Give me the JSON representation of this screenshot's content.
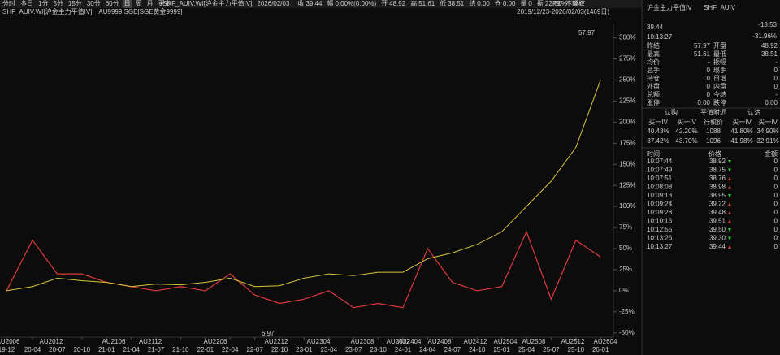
{
  "toolbar": {
    "periods": [
      "分时",
      "多日",
      "1分",
      "5分",
      "15分",
      "30分",
      "60分",
      "日",
      "周",
      "月",
      "更多"
    ],
    "active": 7,
    "quote": [
      [
        "SHF_AUIV.WI[沪金主力平值IV]",
        "#ddd"
      ],
      [
        "2026/02/03",
        "#ddd"
      ],
      [
        "收",
        "#aaa"
      ],
      [
        "39.44",
        "#e84040"
      ],
      [
        "幅",
        "#aaa"
      ],
      [
        "0.00%(0.00%)",
        "#ddd"
      ],
      [
        "开",
        "#aaa"
      ],
      [
        "48.92",
        "#e84040"
      ],
      [
        "高",
        "#aaa"
      ],
      [
        "51.61",
        "#e84040"
      ],
      [
        "低",
        "#aaa"
      ],
      [
        "38.51",
        "#e84040"
      ],
      [
        "结",
        "#aaa"
      ],
      [
        "0.00",
        "#ddd"
      ],
      [
        "仓",
        "#aaa"
      ],
      [
        "0.00",
        "#ddd"
      ],
      [
        "量",
        "#aaa"
      ],
      [
        "0",
        "#ddd"
      ],
      [
        "振",
        "#aaa"
      ],
      [
        "22.60%",
        "#ddd"
      ],
      [
        "额",
        "#aaa"
      ],
      [
        "0",
        "#ddd"
      ]
    ],
    "right": [
      "F9",
      "不复权"
    ],
    "range": "2019/12/23-2026/02/03(1469日)"
  },
  "chart_data": {
    "type": "line",
    "categories": [
      "19-12",
      "20-04",
      "20-07",
      "20-10",
      "21-01",
      "21-04",
      "21-07",
      "21-10",
      "22-01",
      "22-04",
      "22-07",
      "22-10",
      "23-01",
      "23-04",
      "23-07",
      "23-10",
      "24-01",
      "24-04",
      "24-07",
      "24-10",
      "25-01",
      "25-04",
      "25-07",
      "25-10",
      "26-01"
    ],
    "series": [
      {
        "name": "SHF_AUIV.WI[沪金主力平值IV]",
        "color": "#e03a3a",
        "values": [
          0,
          60,
          20,
          20,
          10,
          5,
          0,
          5,
          0,
          20,
          -5,
          -15,
          -10,
          0,
          -20,
          -15,
          -20,
          50,
          10,
          0,
          5,
          70,
          -10,
          60,
          40
        ]
      },
      {
        "name": "AU9999.SGE[SGE黄金9999]",
        "color": "#d8c53a",
        "values": [
          0,
          5,
          15,
          12,
          10,
          5,
          8,
          7,
          10,
          15,
          5,
          6,
          15,
          20,
          18,
          22,
          22,
          38,
          45,
          55,
          70,
          100,
          130,
          170,
          250
        ]
      }
    ],
    "contracts": [
      "AU2006",
      "AU2012",
      "AU2106",
      "AU2112",
      "AU2206",
      "AU2212",
      "AU2304",
      "AU2308",
      "AU2312",
      "AU2404",
      "AU2408",
      "AU2412",
      "AU2504",
      "AU2508",
      "AU2512",
      "AU2604"
    ],
    "ylim": [
      -55,
      315
    ],
    "yticks": [
      {
        "value": 300,
        "label": "300%"
      },
      {
        "value": 275,
        "label": "275%"
      },
      {
        "value": 250,
        "label": "250%"
      },
      {
        "value": 225,
        "label": "225%"
      },
      {
        "value": 200,
        "label": "200%"
      },
      {
        "value": 175,
        "label": "175%"
      },
      {
        "value": 150,
        "label": "150%"
      },
      {
        "value": 125,
        "label": "125%"
      },
      {
        "value": 100,
        "label": "100%"
      },
      {
        "value": 75,
        "label": "75%"
      },
      {
        "value": 50,
        "label": "50%"
      },
      {
        "value": 25,
        "label": "25%"
      },
      {
        "value": 0,
        "label": "0%"
      },
      {
        "value": -25,
        "label": "-25%"
      },
      {
        "value": -50,
        "label": "-50%"
      }
    ],
    "annotations": [
      "57.97",
      "6.97"
    ]
  },
  "panel": {
    "title": "沪金主力平值IV",
    "code": "SHF_AUIV",
    "price": "39.44",
    "change": "-18.53",
    "pct": "-31.96%",
    "time": "10:13:27",
    "quote": [
      [
        "昨结",
        "57.97",
        "#ddd",
        "开盘",
        "48.92",
        "#2ecc40"
      ],
      [
        "最高",
        "51.61",
        "#2ecc40",
        "最低",
        "38.51",
        "#2ecc40"
      ],
      [
        "均价",
        "-",
        "#ddd",
        "振幅",
        "-",
        "#ddd"
      ],
      [
        "总手",
        "0",
        "#ddd",
        "现手",
        "0",
        "#ddd"
      ],
      [
        "持仓",
        "0",
        "#ddd",
        "日增",
        "0",
        "#ddd"
      ],
      [
        "外盘",
        "0",
        "#e84040",
        "内盘",
        "0",
        "#2ecc40"
      ],
      [
        "总额",
        "0",
        "#ddd",
        "今结",
        "-",
        "#ddd"
      ],
      [
        "涨停",
        "0.00",
        "#e84040",
        "跌停",
        "0.00",
        "#2ecc40"
      ]
    ],
    "options": {
      "head": [
        "认购",
        "平值附近",
        "认沽"
      ],
      "cols": [
        "买一IV",
        "买一IV",
        "行权价",
        "买一IV",
        "买一IV"
      ],
      "rows": [
        [
          "40.43%",
          "42.20%",
          "1088",
          "41.80%",
          "34.90%"
        ],
        [
          "37.42%",
          "43.70%",
          "1096",
          "41.98%",
          "32.91%"
        ]
      ]
    },
    "trade_head": [
      "时间",
      "价格",
      "金额"
    ],
    "trades": [
      [
        "10:07:44",
        "38.92",
        "0",
        "#2ecc40"
      ],
      [
        "10:07:49",
        "38.75",
        "0",
        "#2ecc40"
      ],
      [
        "10:07:51",
        "38.76",
        "0",
        "#e84040"
      ],
      [
        "10:08:08",
        "38.98",
        "0",
        "#e84040"
      ],
      [
        "10:09:13",
        "38.95",
        "0",
        "#2ecc40"
      ],
      [
        "10:09:24",
        "39.22",
        "0",
        "#e84040"
      ],
      [
        "10:09:28",
        "39.48",
        "0",
        "#e84040"
      ],
      [
        "10:10:16",
        "39.51",
        "0",
        "#e84040"
      ],
      [
        "10:12:55",
        "39.50",
        "0",
        "#2ecc40"
      ],
      [
        "10:13:26",
        "39.30",
        "0",
        "#2ecc40"
      ],
      [
        "10:13:27",
        "39.44",
        "0",
        "#e84040"
      ]
    ]
  }
}
